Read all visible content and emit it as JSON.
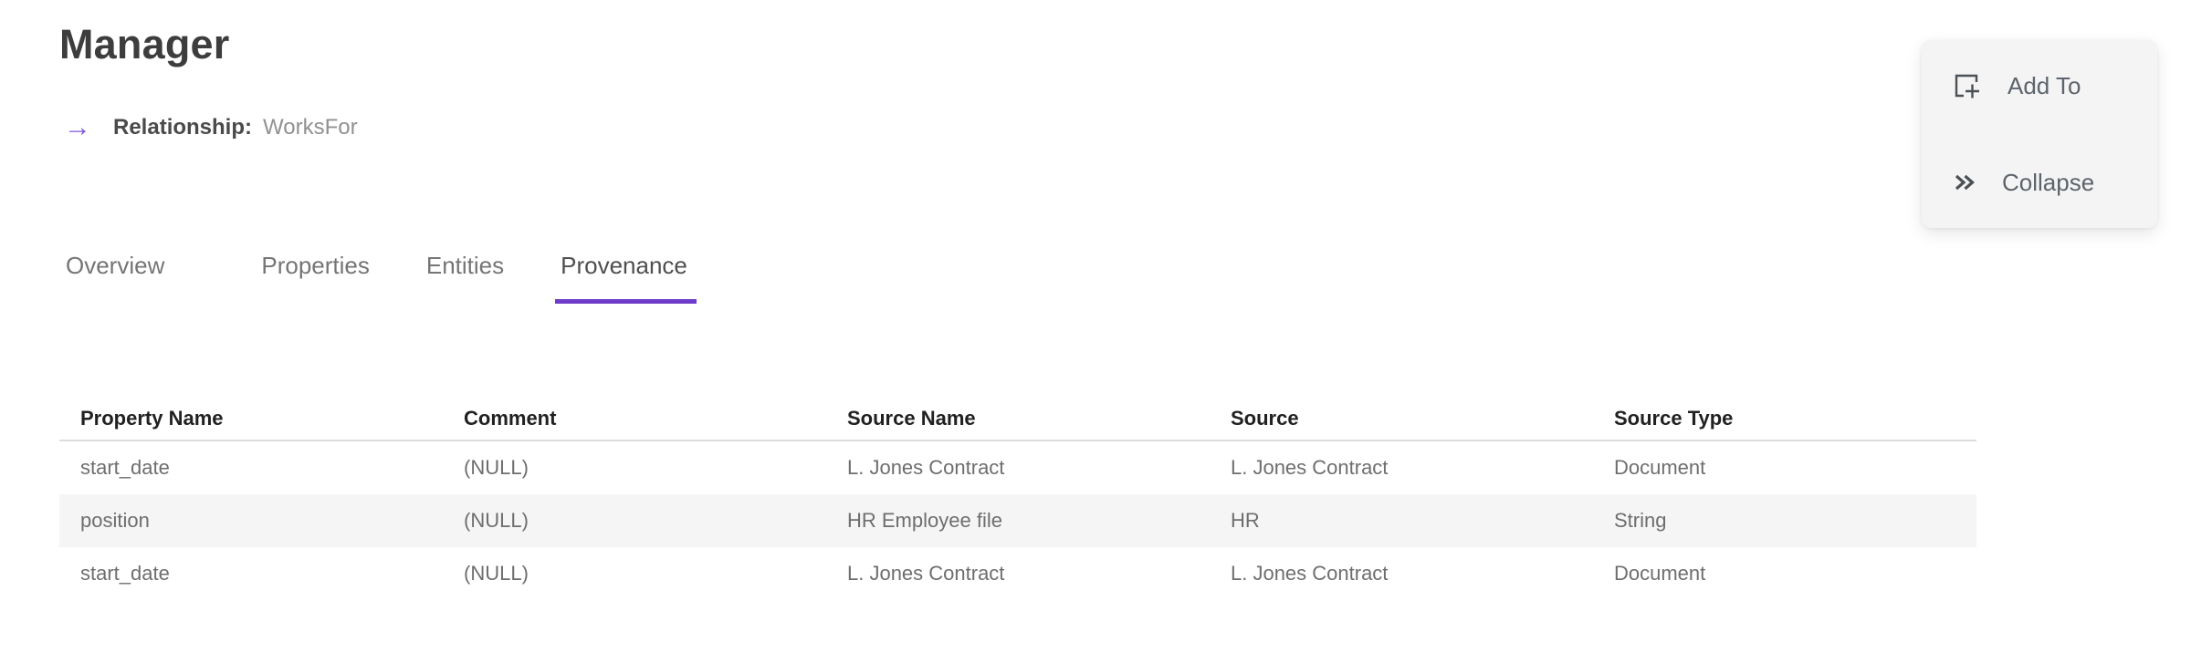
{
  "page": {
    "title": "Manager",
    "relationship_label": "Relationship:",
    "relationship_value": "WorksFor",
    "relationship_arrow_glyph": "→"
  },
  "actions": {
    "add_to_label": "Add To",
    "collapse_label": "Collapse",
    "add_to_icon": "add-to-square-plus",
    "collapse_icon": "double-chevron-right"
  },
  "tabs": [
    {
      "label": "Overview",
      "active": false
    },
    {
      "label": "Properties",
      "active": false
    },
    {
      "label": "Entities",
      "active": false
    },
    {
      "label": "Provenance",
      "active": true
    }
  ],
  "table": {
    "columns": [
      "Property Name",
      "Comment",
      "Source Name",
      "Source",
      "Source Type"
    ],
    "rows": [
      [
        "start_date",
        "(NULL)",
        "L. Jones Contract",
        "L. Jones Contract",
        "Document"
      ],
      [
        "position",
        "(NULL)",
        "HR Employee file",
        "HR",
        "String"
      ],
      [
        "start_date",
        "(NULL)",
        "L. Jones Contract",
        "L. Jones Contract",
        "Document"
      ]
    ]
  },
  "colors": {
    "accent_purple": "#6e3cc9",
    "arrow_purple": "#7e57d8",
    "stripe_gray": "#f5f5f5",
    "card_bg": "#f4f4f4",
    "icon_gray": "#4b5055"
  }
}
